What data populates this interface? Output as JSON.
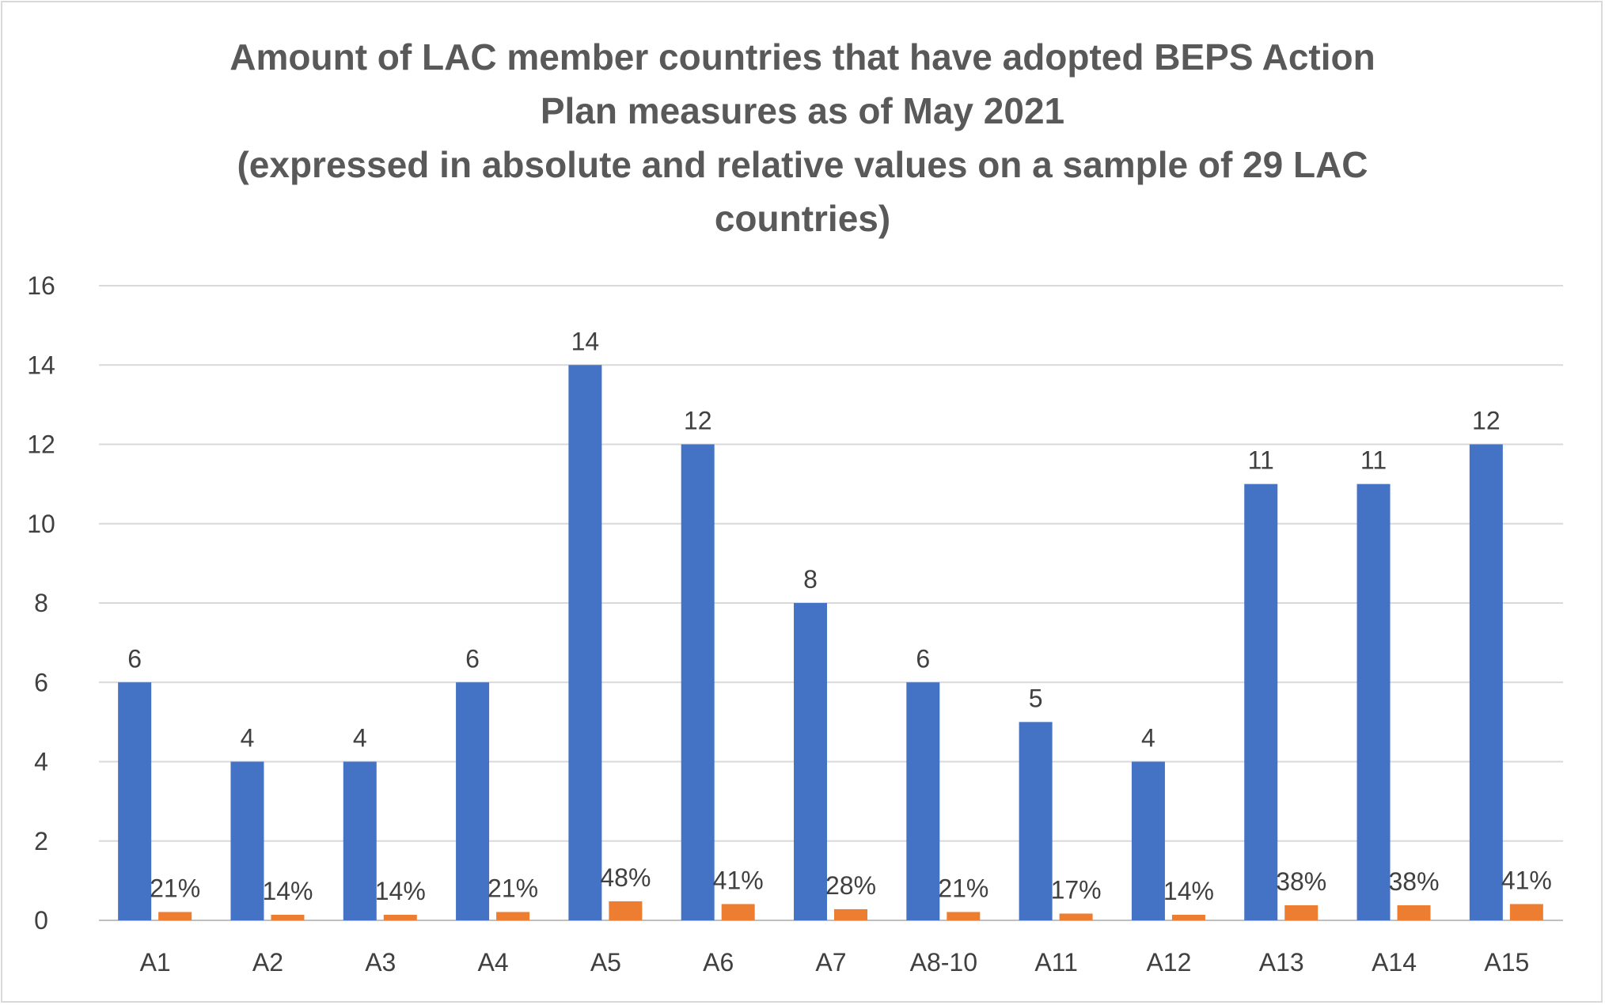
{
  "chart_data": {
    "type": "bar",
    "title": [
      "Amount of LAC member countries that have adopted BEPS Action",
      "Plan measures as of May 2021",
      "(expressed in absolute and relative values on a sample of 29 LAC",
      "countries)"
    ],
    "xlabel": "",
    "ylabel": "",
    "ylim": [
      0,
      16
    ],
    "yticks": [
      "0",
      "2",
      "4",
      "6",
      "8",
      "10",
      "12",
      "14",
      "16"
    ],
    "grid": true,
    "legend": "none",
    "categories": [
      "A1",
      "A2",
      "A3",
      "A4",
      "A5",
      "A6",
      "A7",
      "A8-10",
      "A11",
      "A12",
      "A13",
      "A14",
      "A15"
    ],
    "series": [
      {
        "color": "#4472c4",
        "values": [
          6,
          4,
          4,
          6,
          14,
          12,
          8,
          6,
          5,
          4,
          11,
          11,
          12
        ],
        "labels": [
          "6",
          "4",
          "4",
          "6",
          "14",
          "12",
          "8",
          "6",
          "5",
          "4",
          "11",
          "11",
          "12"
        ]
      },
      {
        "color": "#ed7d31",
        "values": [
          0.21,
          0.14,
          0.14,
          0.21,
          0.48,
          0.41,
          0.28,
          0.21,
          0.17,
          0.14,
          0.38,
          0.38,
          0.41
        ],
        "labels": [
          "21%",
          "14%",
          "14%",
          "21%",
          "48%",
          "41%",
          "28%",
          "21%",
          "17%",
          "14%",
          "38%",
          "38%",
          "41%"
        ]
      }
    ]
  }
}
